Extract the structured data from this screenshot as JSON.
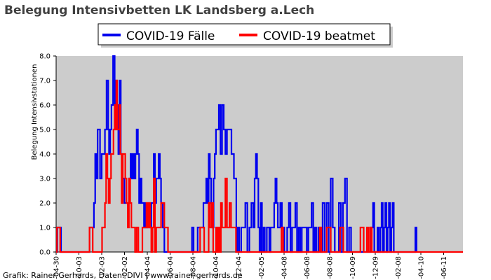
{
  "chart_data": {
    "type": "line",
    "title": "Belegung Intensivbetten LK Landsberg a.Lech",
    "xlabel": "",
    "ylabel": "Belegung Intensivstationen",
    "ylim": [
      0,
      8
    ],
    "yticks": [
      "0.0",
      "1.0",
      "2.0",
      "3.0",
      "4.0",
      "5.0",
      "6.0",
      "7.0",
      "8.0"
    ],
    "xticks": [
      "-04-30",
      "-10-03",
      "-12-03",
      "-02-02",
      "-04-04",
      "-06-04",
      "-08-04",
      "-10-04",
      "-12-04",
      "-02-05",
      "-04-08",
      "-06-08",
      "-08-08",
      "-10-09",
      "-12-09",
      "-02-08",
      "-04-10",
      "-06-11"
    ],
    "x_range": [
      0,
      1000
    ],
    "grid": false,
    "legend_position": "top-center",
    "series": [
      {
        "name": "COVID-19 Fälle",
        "color": "#0000ee",
        "points": [
          [
            0,
            0
          ],
          [
            2,
            0
          ],
          [
            3,
            1
          ],
          [
            10,
            1
          ],
          [
            12,
            0
          ],
          [
            80,
            0
          ],
          [
            82,
            1
          ],
          [
            90,
            1
          ],
          [
            93,
            2
          ],
          [
            96,
            4
          ],
          [
            99,
            3
          ],
          [
            102,
            5
          ],
          [
            105,
            5
          ],
          [
            108,
            3
          ],
          [
            112,
            4
          ],
          [
            116,
            4
          ],
          [
            120,
            5
          ],
          [
            124,
            7
          ],
          [
            128,
            5
          ],
          [
            130,
            4
          ],
          [
            133,
            5
          ],
          [
            136,
            6
          ],
          [
            140,
            8
          ],
          [
            144,
            6
          ],
          [
            147,
            7
          ],
          [
            150,
            6
          ],
          [
            153,
            4
          ],
          [
            156,
            7
          ],
          [
            159,
            4
          ],
          [
            162,
            3
          ],
          [
            165,
            3
          ],
          [
            168,
            2
          ],
          [
            171,
            2
          ],
          [
            174,
            2
          ],
          [
            177,
            2
          ],
          [
            180,
            3
          ],
          [
            183,
            4
          ],
          [
            186,
            3
          ],
          [
            189,
            4
          ],
          [
            192,
            3
          ],
          [
            195,
            4
          ],
          [
            198,
            5
          ],
          [
            201,
            4
          ],
          [
            204,
            2
          ],
          [
            207,
            3
          ],
          [
            210,
            2
          ],
          [
            213,
            2
          ],
          [
            216,
            1
          ],
          [
            219,
            2
          ],
          [
            222,
            1
          ],
          [
            225,
            2
          ],
          [
            228,
            2
          ],
          [
            231,
            1
          ],
          [
            234,
            2
          ],
          [
            237,
            2
          ],
          [
            240,
            4
          ],
          [
            243,
            2
          ],
          [
            246,
            3
          ],
          [
            249,
            3
          ],
          [
            252,
            4
          ],
          [
            255,
            3
          ],
          [
            258,
            2
          ],
          [
            262,
            1
          ],
          [
            266,
            0
          ],
          [
            330,
            0
          ],
          [
            334,
            1
          ],
          [
            338,
            0
          ],
          [
            345,
            0
          ],
          [
            348,
            1
          ],
          [
            358,
            1
          ],
          [
            362,
            2
          ],
          [
            366,
            2
          ],
          [
            369,
            3
          ],
          [
            372,
            2
          ],
          [
            375,
            4
          ],
          [
            378,
            3
          ],
          [
            381,
            2
          ],
          [
            384,
            1
          ],
          [
            387,
            3
          ],
          [
            390,
            4
          ],
          [
            393,
            5
          ],
          [
            397,
            5
          ],
          [
            400,
            6
          ],
          [
            404,
            4
          ],
          [
            408,
            6
          ],
          [
            412,
            5
          ],
          [
            416,
            4
          ],
          [
            420,
            5
          ],
          [
            424,
            5
          ],
          [
            428,
            5
          ],
          [
            431,
            4
          ],
          [
            434,
            4
          ],
          [
            437,
            3
          ],
          [
            440,
            3
          ],
          [
            443,
            0
          ],
          [
            446,
            1
          ],
          [
            450,
            0
          ],
          [
            455,
            1
          ],
          [
            460,
            1
          ],
          [
            465,
            2
          ],
          [
            470,
            0
          ],
          [
            475,
            1
          ],
          [
            480,
            2
          ],
          [
            485,
            1
          ],
          [
            488,
            3
          ],
          [
            491,
            4
          ],
          [
            494,
            3
          ],
          [
            497,
            1
          ],
          [
            500,
            0
          ],
          [
            503,
            2
          ],
          [
            506,
            0
          ],
          [
            510,
            1
          ],
          [
            513,
            0
          ],
          [
            518,
            1
          ],
          [
            521,
            1
          ],
          [
            524,
            0
          ],
          [
            527,
            1
          ],
          [
            530,
            1
          ],
          [
            533,
            1
          ],
          [
            536,
            2
          ],
          [
            539,
            3
          ],
          [
            542,
            2
          ],
          [
            545,
            1
          ],
          [
            548,
            1
          ],
          [
            551,
            2
          ],
          [
            555,
            1
          ],
          [
            558,
            1
          ],
          [
            561,
            0
          ],
          [
            564,
            0
          ],
          [
            568,
            1
          ],
          [
            572,
            2
          ],
          [
            576,
            0
          ],
          [
            580,
            1
          ],
          [
            584,
            1
          ],
          [
            588,
            2
          ],
          [
            592,
            0
          ],
          [
            596,
            1
          ],
          [
            600,
            0
          ],
          [
            604,
            1
          ],
          [
            608,
            1
          ],
          [
            612,
            1
          ],
          [
            616,
            0
          ],
          [
            620,
            1
          ],
          [
            624,
            1
          ],
          [
            628,
            2
          ],
          [
            632,
            0
          ],
          [
            636,
            1
          ],
          [
            640,
            0
          ],
          [
            645,
            1
          ],
          [
            650,
            0
          ],
          [
            655,
            2
          ],
          [
            660,
            0
          ],
          [
            665,
            2
          ],
          [
            670,
            0
          ],
          [
            675,
            3
          ],
          [
            680,
            1
          ],
          [
            685,
            0
          ],
          [
            690,
            0
          ],
          [
            695,
            2
          ],
          [
            700,
            0
          ],
          [
            705,
            2
          ],
          [
            710,
            3
          ],
          [
            715,
            0
          ],
          [
            720,
            1
          ],
          [
            725,
            0
          ],
          [
            730,
            0
          ],
          [
            735,
            0
          ],
          [
            770,
            0
          ],
          [
            773,
            1
          ],
          [
            776,
            1
          ],
          [
            779,
            2
          ],
          [
            782,
            0
          ],
          [
            786,
            0
          ],
          [
            790,
            1
          ],
          [
            793,
            0
          ],
          [
            797,
            1
          ],
          [
            800,
            2
          ],
          [
            803,
            0
          ],
          [
            806,
            1
          ],
          [
            809,
            2
          ],
          [
            812,
            0
          ],
          [
            815,
            1
          ],
          [
            818,
            2
          ],
          [
            821,
            0
          ],
          [
            824,
            1
          ],
          [
            827,
            2
          ],
          [
            830,
            0
          ],
          [
            880,
            0
          ],
          [
            883,
            1
          ],
          [
            886,
            0
          ]
        ]
      },
      {
        "name": "COVID-19 beatmet",
        "color": "#ff0000",
        "points": [
          [
            0,
            0
          ],
          [
            2,
            1
          ],
          [
            8,
            1
          ],
          [
            10,
            0
          ],
          [
            80,
            0
          ],
          [
            82,
            1
          ],
          [
            88,
            1
          ],
          [
            90,
            0
          ],
          [
            110,
            0
          ],
          [
            113,
            1
          ],
          [
            117,
            1
          ],
          [
            120,
            2
          ],
          [
            123,
            4
          ],
          [
            126,
            3
          ],
          [
            129,
            2
          ],
          [
            132,
            3
          ],
          [
            135,
            4
          ],
          [
            138,
            4
          ],
          [
            141,
            5
          ],
          [
            144,
            6
          ],
          [
            146,
            5
          ],
          [
            148,
            7
          ],
          [
            150,
            5
          ],
          [
            152,
            5
          ],
          [
            155,
            6
          ],
          [
            158,
            4
          ],
          [
            161,
            2
          ],
          [
            164,
            4
          ],
          [
            167,
            4
          ],
          [
            170,
            3
          ],
          [
            173,
            2
          ],
          [
            176,
            1
          ],
          [
            179,
            3
          ],
          [
            182,
            2
          ],
          [
            185,
            1
          ],
          [
            188,
            1
          ],
          [
            191,
            1
          ],
          [
            194,
            0
          ],
          [
            198,
            1
          ],
          [
            202,
            0
          ],
          [
            208,
            0
          ],
          [
            212,
            1
          ],
          [
            218,
            1
          ],
          [
            222,
            2
          ],
          [
            226,
            1
          ],
          [
            228,
            2
          ],
          [
            231,
            1
          ],
          [
            234,
            0
          ],
          [
            237,
            1
          ],
          [
            240,
            3
          ],
          [
            243,
            0
          ],
          [
            246,
            1
          ],
          [
            250,
            1
          ],
          [
            254,
            1
          ],
          [
            258,
            2
          ],
          [
            262,
            2
          ],
          [
            266,
            1
          ],
          [
            270,
            1
          ],
          [
            275,
            0
          ],
          [
            350,
            0
          ],
          [
            354,
            1
          ],
          [
            360,
            1
          ],
          [
            364,
            0
          ],
          [
            370,
            0
          ],
          [
            375,
            2
          ],
          [
            378,
            1
          ],
          [
            382,
            2
          ],
          [
            386,
            0
          ],
          [
            390,
            0
          ],
          [
            393,
            1
          ],
          [
            396,
            0
          ],
          [
            399,
            1
          ],
          [
            402,
            0
          ],
          [
            405,
            2
          ],
          [
            408,
            1
          ],
          [
            412,
            1
          ],
          [
            416,
            3
          ],
          [
            420,
            1
          ],
          [
            423,
            1
          ],
          [
            426,
            2
          ],
          [
            430,
            1
          ],
          [
            434,
            1
          ],
          [
            438,
            1
          ],
          [
            442,
            0
          ],
          [
            550,
            0
          ],
          [
            554,
            1
          ],
          [
            558,
            0
          ],
          [
            640,
            0
          ],
          [
            645,
            0
          ],
          [
            648,
            1
          ],
          [
            652,
            0
          ],
          [
            660,
            0
          ],
          [
            665,
            1
          ],
          [
            670,
            1
          ],
          [
            675,
            0
          ],
          [
            680,
            0
          ],
          [
            695,
            0
          ],
          [
            698,
            1
          ],
          [
            702,
            1
          ],
          [
            706,
            0
          ],
          [
            740,
            0
          ],
          [
            744,
            0
          ],
          [
            748,
            1
          ],
          [
            752,
            1
          ],
          [
            756,
            0
          ],
          [
            760,
            0
          ],
          [
            764,
            1
          ],
          [
            768,
            0
          ],
          [
            772,
            1
          ],
          [
            776,
            0
          ],
          [
            800,
            0
          ],
          [
            810,
            0
          ],
          [
            1000,
            0
          ]
        ]
      }
    ]
  },
  "credit": "Grafik: Rainer Gerhards, Daten: DIVI | www.rainer-gerhards.de"
}
